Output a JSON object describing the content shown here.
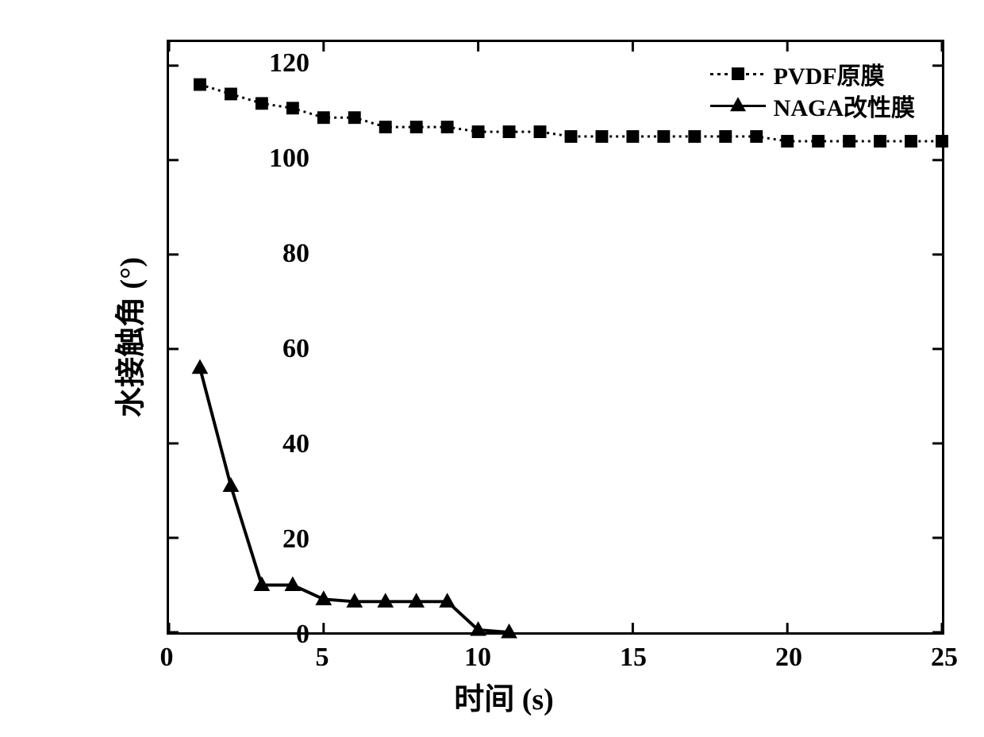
{
  "chart": {
    "type": "line",
    "xlabel": "时间 (s)",
    "ylabel": "水接触角 (°)",
    "label_fontsize": 38,
    "tick_fontsize": 34,
    "background_color": "#ffffff",
    "border_color": "#000000",
    "border_width": 3,
    "xlim": [
      0,
      25
    ],
    "ylim": [
      0,
      125
    ],
    "xtick_step": 5,
    "ytick_step": 20,
    "xticks": [
      0,
      5,
      10,
      15,
      20,
      25
    ],
    "yticks": [
      0,
      20,
      40,
      60,
      80,
      100,
      120
    ],
    "legend_position": "top-right",
    "series": [
      {
        "name": "PVDF原膜",
        "marker": "square",
        "marker_size": 16,
        "line_width": 3,
        "line_dash": "3,5",
        "color": "#000000",
        "x": [
          1,
          2,
          3,
          4,
          5,
          6,
          7,
          8,
          9,
          10,
          11,
          12,
          13,
          14,
          15,
          16,
          17,
          18,
          19,
          20,
          21,
          22,
          23,
          24,
          25
        ],
        "y": [
          116,
          114,
          112,
          111,
          109,
          109,
          107,
          107,
          107,
          106,
          106,
          106,
          105,
          105,
          105,
          105,
          105,
          105,
          105,
          104,
          104,
          104,
          104,
          104,
          104
        ]
      },
      {
        "name": "NAGA改性膜",
        "marker": "triangle",
        "marker_size": 18,
        "line_width": 4,
        "line_dash": "none",
        "color": "#000000",
        "x": [
          1,
          2,
          3,
          4,
          5,
          6,
          7,
          8,
          9,
          10,
          11
        ],
        "y": [
          56,
          31,
          10,
          10,
          7,
          6.5,
          6.5,
          6.5,
          6.5,
          0.5,
          0
        ]
      }
    ]
  }
}
